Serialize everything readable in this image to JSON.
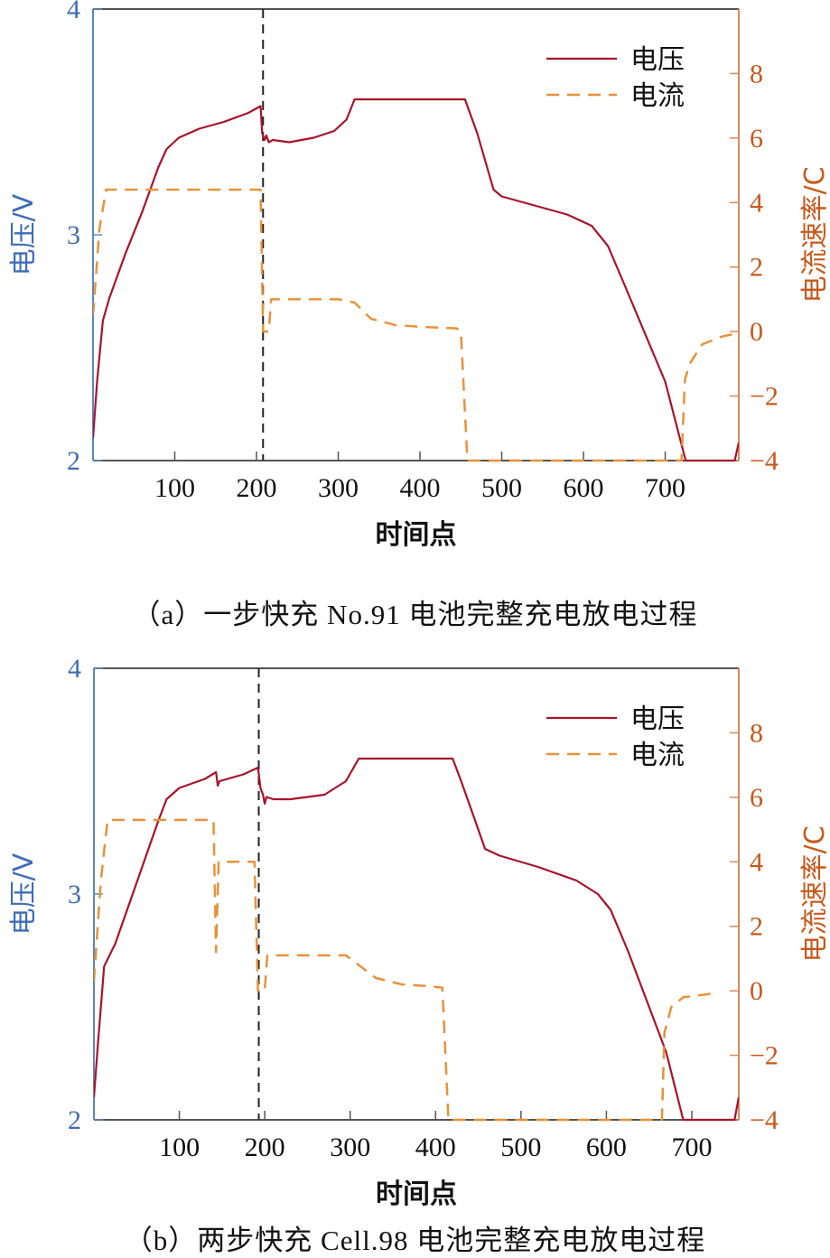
{
  "colors": {
    "voltage_line": "#a8132a",
    "current_line": "#e8923a",
    "left_axis": "#5a86c8",
    "left_axis_text": "#3e6db5",
    "right_axis": "#d98a5a",
    "right_axis_text": "#c8581a",
    "frame": "#555555",
    "marker": "#222222"
  },
  "chart_data": [
    {
      "id": "a",
      "type": "line",
      "caption": "（a）一步快充 No.91 电池完整充电放电过程",
      "xlabel": "时间点",
      "ylabel_left": "电压/V",
      "ylabel_right": "电流速率/C",
      "xlim": [
        0,
        790
      ],
      "ylim_left": [
        2,
        4
      ],
      "ylim_right": [
        -4,
        10
      ],
      "xticks": [
        100,
        200,
        300,
        400,
        500,
        600,
        700
      ],
      "yticks_left": [
        2,
        3,
        4
      ],
      "yticks_right": [
        -4,
        -2,
        0,
        2,
        4,
        6,
        8
      ],
      "grid": false,
      "legend": {
        "position": "upper right",
        "entries": [
          "电压",
          "电流"
        ]
      },
      "vertical_marker_x": 208,
      "series": [
        {
          "name": "电压",
          "axis": "left",
          "style": "solid",
          "points": [
            [
              0,
              2.1
            ],
            [
              5,
              2.35
            ],
            [
              12,
              2.62
            ],
            [
              20,
              2.72
            ],
            [
              40,
              2.92
            ],
            [
              60,
              3.1
            ],
            [
              80,
              3.3
            ],
            [
              90,
              3.38
            ],
            [
              105,
              3.43
            ],
            [
              130,
              3.47
            ],
            [
              160,
              3.5
            ],
            [
              190,
              3.54
            ],
            [
              205,
              3.57
            ],
            [
              207,
              3.45
            ],
            [
              210,
              3.42
            ],
            [
              212,
              3.44
            ],
            [
              215,
              3.41
            ],
            [
              220,
              3.42
            ],
            [
              240,
              3.41
            ],
            [
              270,
              3.43
            ],
            [
              295,
              3.46
            ],
            [
              310,
              3.51
            ],
            [
              320,
              3.6
            ],
            [
              400,
              3.6
            ],
            [
              450,
              3.6
            ],
            [
              455,
              3.6
            ],
            [
              470,
              3.45
            ],
            [
              490,
              3.2
            ],
            [
              500,
              3.17
            ],
            [
              540,
              3.13
            ],
            [
              580,
              3.09
            ],
            [
              610,
              3.04
            ],
            [
              630,
              2.95
            ],
            [
              650,
              2.78
            ],
            [
              700,
              2.35
            ],
            [
              725,
              2.0
            ],
            [
              785,
              2.0
            ],
            [
              790,
              2.08
            ]
          ]
        },
        {
          "name": "电流",
          "axis": "right",
          "style": "dashed",
          "points": [
            [
              0,
              0.5
            ],
            [
              8,
              3.2
            ],
            [
              16,
              4.4
            ],
            [
              205,
              4.4
            ],
            [
              208,
              0.0
            ],
            [
              215,
              0.0
            ],
            [
              218,
              1.0
            ],
            [
              300,
              1.0
            ],
            [
              320,
              0.9
            ],
            [
              340,
              0.4
            ],
            [
              370,
              0.2
            ],
            [
              400,
              0.15
            ],
            [
              445,
              0.1
            ],
            [
              450,
              0.0
            ],
            [
              458,
              -4.0
            ],
            [
              720,
              -4.0
            ],
            [
              724,
              -1.5
            ],
            [
              730,
              -1.0
            ],
            [
              745,
              -0.4
            ],
            [
              770,
              -0.15
            ],
            [
              790,
              -0.05
            ]
          ]
        }
      ]
    },
    {
      "id": "b",
      "type": "line",
      "caption": "（b）两步快充 Cell.98 电池完整充电放电过程",
      "xlabel": "时间点",
      "ylabel_left": "电压/V",
      "ylabel_right": "电流速率/C",
      "xlim": [
        0,
        755
      ],
      "ylim_left": [
        2,
        4
      ],
      "ylim_right": [
        -4,
        10
      ],
      "xticks": [
        100,
        200,
        300,
        400,
        500,
        600,
        700
      ],
      "yticks_left": [
        2,
        3,
        4
      ],
      "yticks_right": [
        -4,
        -2,
        0,
        2,
        4,
        6,
        8
      ],
      "grid": false,
      "legend": {
        "position": "upper right",
        "entries": [
          "电压",
          "电流"
        ]
      },
      "vertical_marker_x": 193,
      "series": [
        {
          "name": "电压",
          "axis": "left",
          "style": "solid",
          "points": [
            [
              0,
              2.1
            ],
            [
              5,
              2.35
            ],
            [
              12,
              2.68
            ],
            [
              25,
              2.78
            ],
            [
              50,
              3.05
            ],
            [
              75,
              3.32
            ],
            [
              85,
              3.42
            ],
            [
              100,
              3.47
            ],
            [
              130,
              3.51
            ],
            [
              143,
              3.54
            ],
            [
              145,
              3.48
            ],
            [
              147,
              3.5
            ],
            [
              175,
              3.53
            ],
            [
              192,
              3.56
            ],
            [
              195,
              3.47
            ],
            [
              198,
              3.44
            ],
            [
              200,
              3.4
            ],
            [
              202,
              3.43
            ],
            [
              210,
              3.42
            ],
            [
              230,
              3.42
            ],
            [
              270,
              3.44
            ],
            [
              295,
              3.5
            ],
            [
              310,
              3.6
            ],
            [
              390,
              3.6
            ],
            [
              420,
              3.6
            ],
            [
              430,
              3.5
            ],
            [
              445,
              3.34
            ],
            [
              458,
              3.2
            ],
            [
              475,
              3.17
            ],
            [
              520,
              3.12
            ],
            [
              565,
              3.06
            ],
            [
              590,
              3.0
            ],
            [
              605,
              2.93
            ],
            [
              625,
              2.75
            ],
            [
              670,
              2.3
            ],
            [
              690,
              2.0
            ],
            [
              750,
              2.0
            ],
            [
              755,
              2.1
            ]
          ]
        },
        {
          "name": "电流",
          "axis": "right",
          "style": "dashed",
          "points": [
            [
              0,
              0.3
            ],
            [
              8,
              3.4
            ],
            [
              16,
              5.3
            ],
            [
              140,
              5.3
            ],
            [
              143,
              1.2
            ],
            [
              146,
              4.0
            ],
            [
              188,
              4.0
            ],
            [
              192,
              0.0
            ],
            [
              200,
              0.0
            ],
            [
              203,
              1.1
            ],
            [
              295,
              1.1
            ],
            [
              310,
              0.8
            ],
            [
              330,
              0.4
            ],
            [
              360,
              0.2
            ],
            [
              390,
              0.15
            ],
            [
              408,
              0.1
            ],
            [
              415,
              -4.0
            ],
            [
              665,
              -4.0
            ],
            [
              668,
              -1.3
            ],
            [
              676,
              -0.5
            ],
            [
              690,
              -0.2
            ],
            [
              720,
              -0.1
            ],
            [
              730,
              0.05
            ]
          ]
        }
      ]
    }
  ]
}
